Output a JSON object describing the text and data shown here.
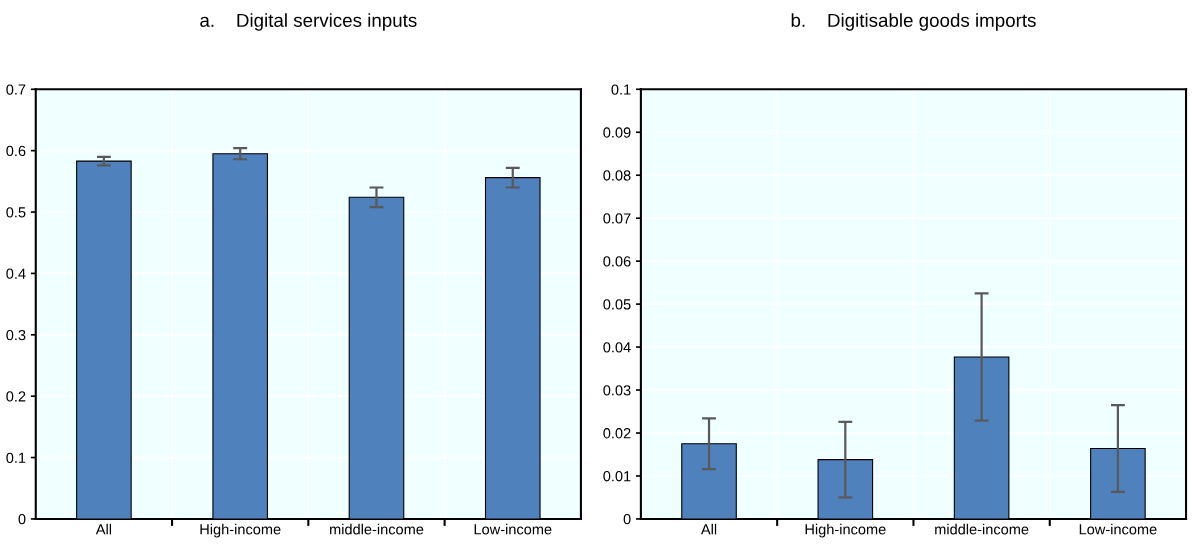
{
  "chart_data": [
    {
      "type": "bar",
      "title": "a.    Digital services inputs",
      "categories": [
        "All",
        "High-income",
        "middle-income",
        "Low-income"
      ],
      "values": [
        0.583,
        0.595,
        0.524,
        0.556
      ],
      "errors": [
        0.007,
        0.009,
        0.016,
        0.016
      ],
      "color": "#4f81bd",
      "ylim": [
        0,
        0.7
      ],
      "yticks": [
        0,
        0.1,
        0.2,
        0.3,
        0.4,
        0.5,
        0.6,
        0.7
      ],
      "grid": true
    },
    {
      "type": "bar",
      "title": "b.    Digitisable goods imports",
      "categories": [
        "All",
        "High-income",
        "middle-income",
        "Low-income"
      ],
      "values": [
        0.0175,
        0.0138,
        0.0377,
        0.0164
      ],
      "errors": [
        0.0059,
        0.0088,
        0.0148,
        0.0101
      ],
      "color": "#4f81bd",
      "ylim": [
        0,
        0.1
      ],
      "yticks": [
        0,
        0.01,
        0.02,
        0.03,
        0.04,
        0.05,
        0.06,
        0.07,
        0.08,
        0.09,
        0.1
      ],
      "grid": true
    }
  ]
}
